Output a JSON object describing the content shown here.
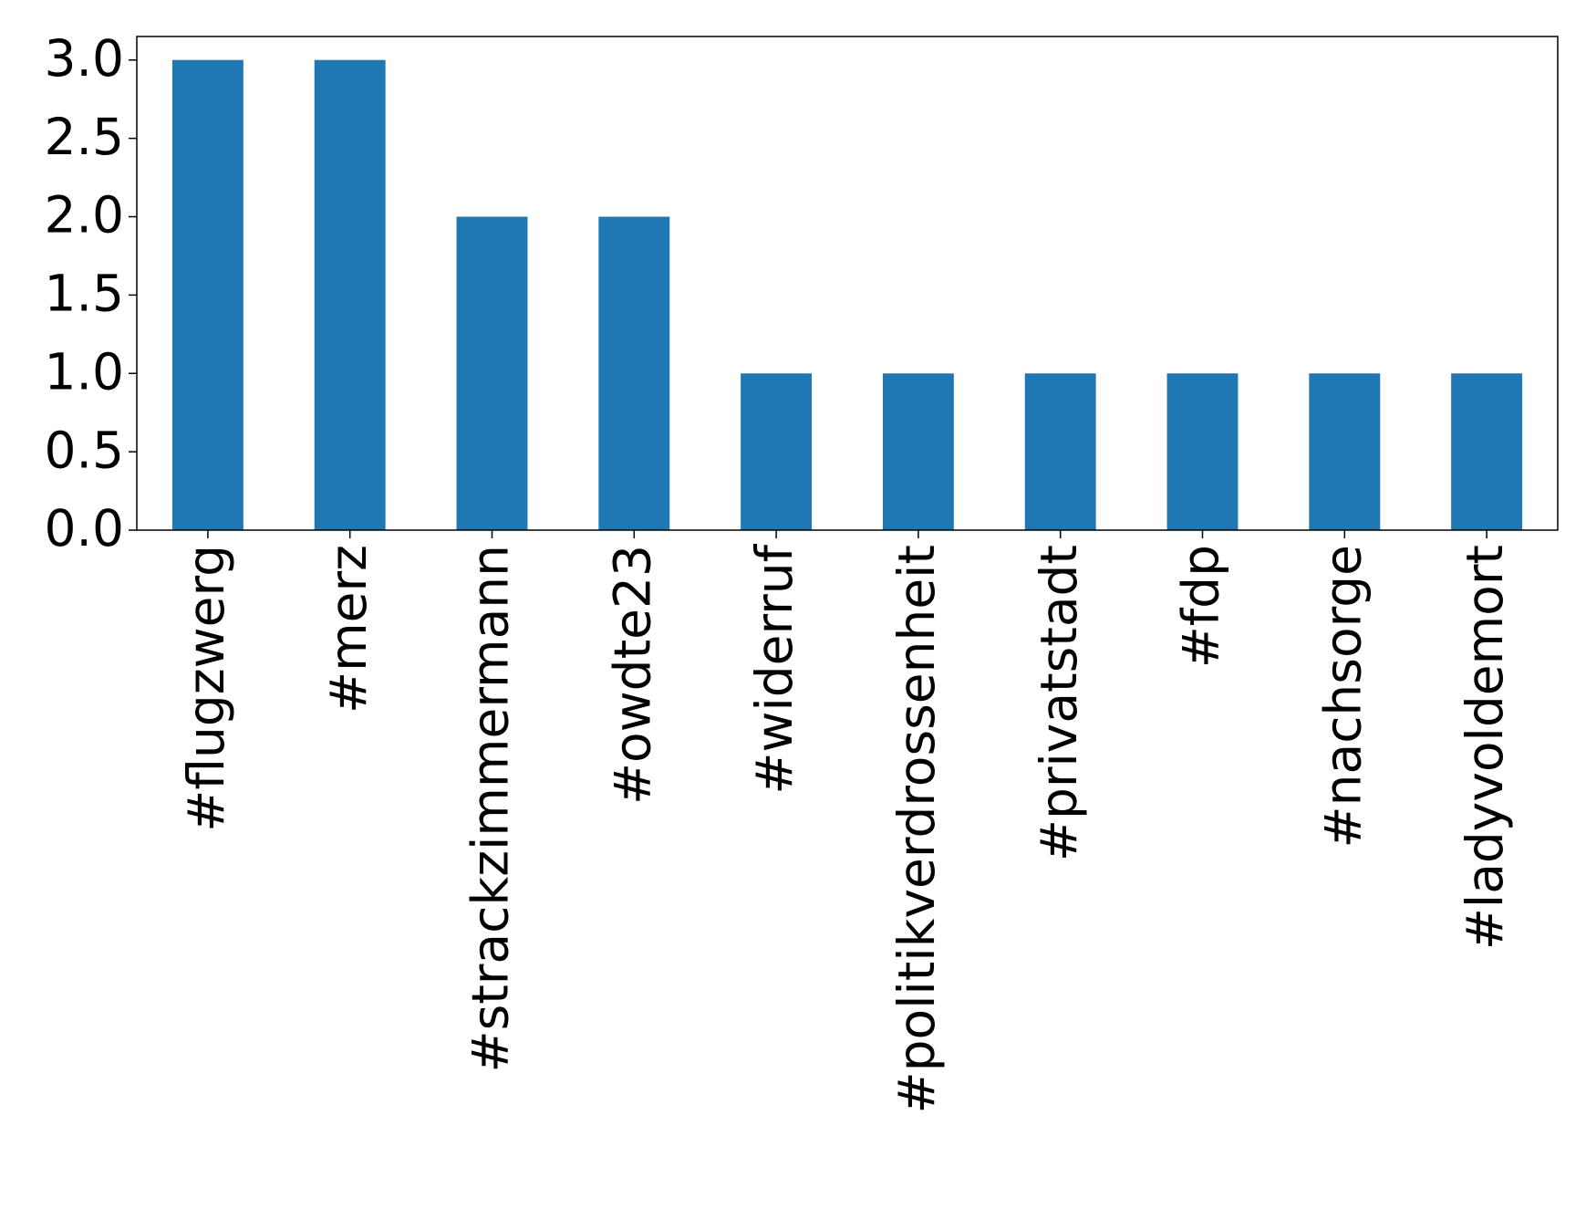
{
  "chart_data": {
    "type": "bar",
    "categories": [
      "#flugzwerg",
      "#merz",
      "#strackzimmermann",
      "#owdte23",
      "#widerruf",
      "#politikverdrossenheit",
      "#privatstadt",
      "#fdp",
      "#nachsorge",
      "#ladyvoldemort"
    ],
    "values": [
      3,
      3,
      2,
      2,
      1,
      1,
      1,
      1,
      1,
      1
    ],
    "color": "#1f77b4",
    "ylim": [
      0,
      3.15
    ],
    "yticks": [
      {
        "value": 0,
        "label": "0.0"
      },
      {
        "value": 0.5,
        "label": "0.5"
      },
      {
        "value": 1,
        "label": "1.0"
      },
      {
        "value": 1.5,
        "label": "1.5"
      },
      {
        "value": 2,
        "label": "2.0"
      },
      {
        "value": 2.5,
        "label": "2.5"
      },
      {
        "value": 3,
        "label": "3.0"
      }
    ],
    "grid": false
  }
}
